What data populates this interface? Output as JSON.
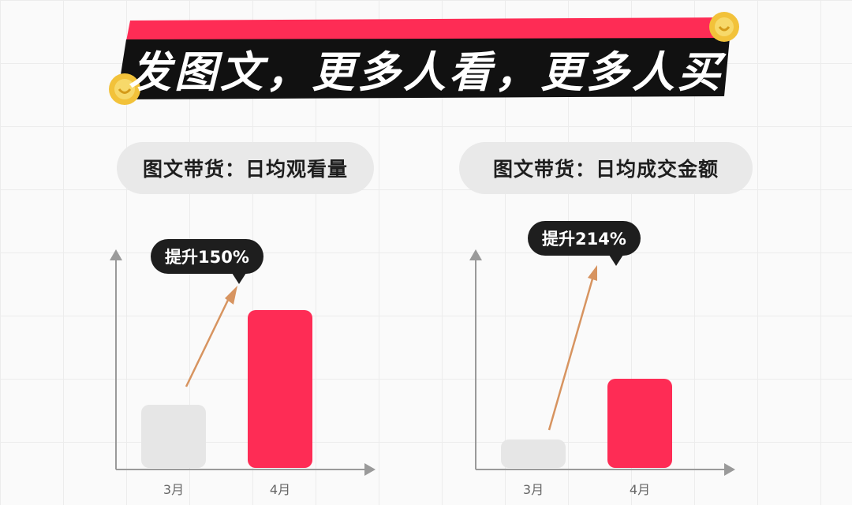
{
  "header": {
    "title": "发图文，更多人看，更多人买"
  },
  "colors": {
    "accent": "#fe2c55",
    "baseline_bar": "#e6e6e6",
    "arrow": "#d79460",
    "dark": "#1e1e1e"
  },
  "icons": [
    "coin-icon",
    "coin-icon"
  ],
  "chart_data": [
    {
      "type": "bar",
      "title": "图文带货：日均观看量",
      "categories": [
        "3月",
        "4月"
      ],
      "values": [
        1,
        2.5
      ],
      "annotation": "提升150%"
    },
    {
      "type": "bar",
      "title": "图文带货：日均成交金额",
      "categories": [
        "3月",
        "4月"
      ],
      "values": [
        1,
        3.14
      ],
      "annotation": "提升214%"
    }
  ]
}
